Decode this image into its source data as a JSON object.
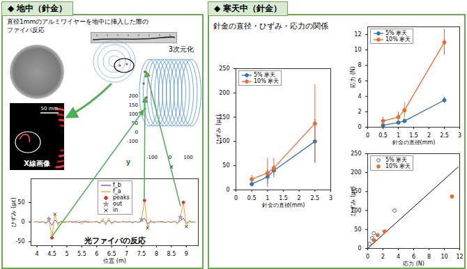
{
  "panels": [
    {
      "title": "◆ 地中（針金）"
    },
    {
      "title": "◆ 寒天中（針金）"
    }
  ],
  "left": {
    "caption": [
      "直径1mmのアルミワイヤーを地中に挿入した際の",
      "ファイバ反応"
    ],
    "scale_bar": "50 mm",
    "xray_label": "X線画像",
    "reconstruction": {
      "label": "3次元化",
      "x_label": "x",
      "y_label": "y",
      "bottom_ticks": [
        -100,
        0,
        100
      ],
      "vertical_ticks": [
        200,
        150,
        100,
        50,
        0,
        -100
      ]
    }
  },
  "right": {
    "title": "針金の直径・ひずみ・応力の関係"
  },
  "chart_data": [
    {
      "type": "line",
      "annotation": "光ファイバの反応",
      "x_label": "位置 (m)",
      "y_label": "ひずみ (με)",
      "xlim": [
        3.8,
        9.4
      ],
      "xticks": [
        4,
        4.5,
        5,
        5.5,
        6,
        6.5,
        7,
        7.5,
        8,
        8.5,
        9
      ],
      "ylim": [
        -60,
        110
      ],
      "yticks": [
        -50,
        0,
        50
      ],
      "grid": false,
      "legend": "top",
      "x": [
        3.9,
        4.0,
        4.1,
        4.2,
        4.3,
        4.4,
        4.5,
        4.6,
        4.7,
        4.8,
        4.9,
        5.0,
        5.1,
        5.2,
        5.3,
        5.4,
        5.5,
        5.6,
        5.7,
        5.8,
        5.9,
        6.0,
        6.1,
        6.2,
        6.3,
        6.4,
        6.5,
        6.6,
        6.7,
        6.8,
        6.9,
        7.0,
        7.1,
        7.2,
        7.3,
        7.4,
        7.5,
        7.6,
        7.7,
        7.8,
        7.9,
        8.0,
        8.1,
        8.2,
        8.3,
        8.4,
        8.5,
        8.6,
        8.7,
        8.8,
        8.9,
        9.0,
        9.1,
        9.2,
        9.3
      ],
      "series": [
        {
          "name": "f_b",
          "color": "#5a4fcf",
          "values": [
            0,
            1,
            -1,
            1,
            -2,
            3,
            -8,
            5,
            -3,
            1,
            0,
            0,
            1,
            -1,
            2,
            -2,
            1,
            0,
            1,
            0,
            0,
            1,
            -2,
            3,
            -3,
            4,
            -2,
            1,
            0,
            0,
            1,
            0,
            1,
            -1,
            1,
            -1,
            2,
            10,
            -4,
            1,
            0,
            0,
            1,
            0,
            -1,
            1,
            -1,
            2,
            -2,
            4,
            10,
            -3,
            1,
            0,
            0
          ]
        },
        {
          "name": "f_a",
          "color": "#f0a030",
          "values": [
            0,
            1,
            -2,
            2,
            -5,
            8,
            -40,
            20,
            -10,
            3,
            -2,
            1,
            0,
            2,
            -3,
            4,
            -6,
            5,
            -2,
            1,
            0,
            2,
            -4,
            9,
            -8,
            10,
            -6,
            3,
            -1,
            0,
            1,
            -1,
            2,
            -3,
            2,
            -2,
            6,
            55,
            -15,
            5,
            -3,
            1,
            0,
            2,
            -1,
            1,
            -2,
            3,
            -5,
            12,
            50,
            -12,
            4,
            -1,
            0
          ]
        },
        {
          "name": "peaks",
          "type": "scatter",
          "marker": "circle",
          "color": "#e03030",
          "x": [
            4.5,
            7.6,
            8.9
          ],
          "values": [
            -40,
            55,
            50
          ]
        },
        {
          "name": "out",
          "type": "scatter",
          "marker": "star",
          "color": "#9aa0a6",
          "x": [
            4.4,
            7.5,
            8.8
          ],
          "values": [
            8,
            6,
            12
          ]
        },
        {
          "name": "in",
          "type": "scatter",
          "marker": "times",
          "color": "#333333",
          "x": [
            4.6,
            7.7,
            9.0
          ],
          "values": [
            20,
            -15,
            -12
          ]
        }
      ]
    },
    {
      "type": "line",
      "x_label": "針金の直径(mm)",
      "y_label": "ひずみ (με)",
      "xlim": [
        0,
        3
      ],
      "xticks": [
        0,
        0.5,
        1,
        1.5,
        2,
        2.5,
        3
      ],
      "ylim": [
        0,
        250
      ],
      "yticks": [
        0,
        50,
        100,
        150,
        200,
        250
      ],
      "grid": false,
      "legend": "top-left",
      "marker": "circle",
      "x": [
        0.5,
        1,
        1.2,
        2.5
      ],
      "series": [
        {
          "name": "5% 寒天",
          "color": "#2e75b6",
          "values": [
            12,
            27,
            40,
            100
          ],
          "errors": [
            5,
            15,
            10,
            45
          ]
        },
        {
          "name": "10% 寒天",
          "color": "#ed6a2c",
          "values": [
            22,
            35,
            45,
            137
          ],
          "errors": [
            8,
            30,
            20,
            80
          ]
        }
      ]
    },
    {
      "type": "line",
      "x_label": "針金の直径(mm)",
      "y_label": "応力 (N)",
      "xlim": [
        0,
        3
      ],
      "xticks": [
        0,
        0.5,
        1,
        1.5,
        2,
        2.5,
        3
      ],
      "ylim": [
        0,
        13
      ],
      "yticks": [
        0,
        2,
        4,
        6,
        8,
        10,
        12
      ],
      "grid": false,
      "legend": "top-left",
      "marker": "circle",
      "x": [
        0.5,
        1,
        1.2,
        2.5
      ],
      "series": [
        {
          "name": "5% 寒天",
          "color": "#2e75b6",
          "values": [
            0.25,
            0.6,
            0.8,
            3.5
          ],
          "errors": [
            0.2,
            0.3,
            0.3,
            0.4
          ]
        },
        {
          "name": "10% 寒天",
          "color": "#ed6a2c",
          "values": [
            0.8,
            1.3,
            2.2,
            11
          ],
          "errors": [
            0.5,
            0.7,
            1,
            1.7
          ]
        }
      ]
    },
    {
      "type": "scatter",
      "x_label": "応力 (N)",
      "y_label": "ひずみ (με)",
      "xlim": [
        0,
        12
      ],
      "xticks": [
        0,
        2,
        4,
        6,
        8,
        10,
        12
      ],
      "ylim": [
        0,
        250
      ],
      "yticks": [
        0,
        50,
        100,
        150,
        200,
        250
      ],
      "grid": false,
      "legend": "top-left",
      "series": [
        {
          "name": "5% 寒天",
          "color": "#2e75b6",
          "marker": "open_circle",
          "x": [
            0.25,
            0.6,
            0.8,
            3.5
          ],
          "values": [
            12,
            27,
            40,
            100
          ]
        },
        {
          "name": "10% 寒天",
          "color": "#ed6a2c",
          "marker": "circle",
          "x": [
            0.8,
            1.3,
            2.2,
            11
          ],
          "values": [
            22,
            35,
            45,
            137
          ]
        }
      ],
      "fit_line": {
        "color": "#000000",
        "x": [
          0,
          11.8
        ],
        "y": [
          0,
          215
        ]
      }
    }
  ]
}
